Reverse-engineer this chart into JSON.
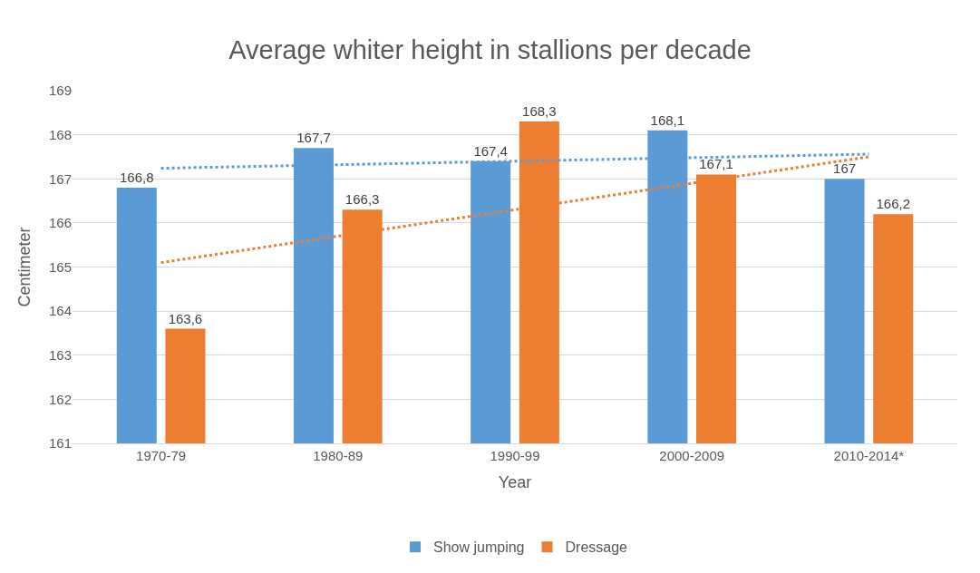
{
  "chart_data": {
    "type": "bar",
    "title": "Average whiter height in stallions per decade",
    "xlabel": "Year",
    "ylabel": "Centimeter",
    "categories": [
      "1970-79",
      "1980-89",
      "1990-99",
      "2000-2009",
      "2010-2014*"
    ],
    "series": [
      {
        "name": "Show jumping",
        "color": "#5b9bd5",
        "values": [
          166.8,
          167.7,
          167.4,
          168.1,
          167.0
        ],
        "value_labels": [
          "166,8",
          "167,7",
          "167,4",
          "168,1",
          "167"
        ]
      },
      {
        "name": "Dressage",
        "color": "#ed7d31",
        "values": [
          163.6,
          166.3,
          168.3,
          167.1,
          166.2
        ],
        "value_labels": [
          "163,6",
          "166,3",
          "168,3",
          "167,1",
          "166,2"
        ]
      },
      {
        "type": "line",
        "color": "#5b9bd5",
        "line_style": "dotted",
        "values": [
          167.24,
          167.32,
          167.4,
          167.48,
          167.56
        ]
      },
      {
        "type": "line",
        "color": "#ed7d31",
        "line_style": "dotted",
        "values": [
          165.1,
          165.7,
          166.3,
          166.9,
          167.5
        ]
      }
    ],
    "ylim": [
      161,
      169
    ],
    "yticks": [
      161,
      162,
      163,
      164,
      165,
      166,
      167,
      168,
      169
    ],
    "grid": "y",
    "legend": "bottom"
  }
}
